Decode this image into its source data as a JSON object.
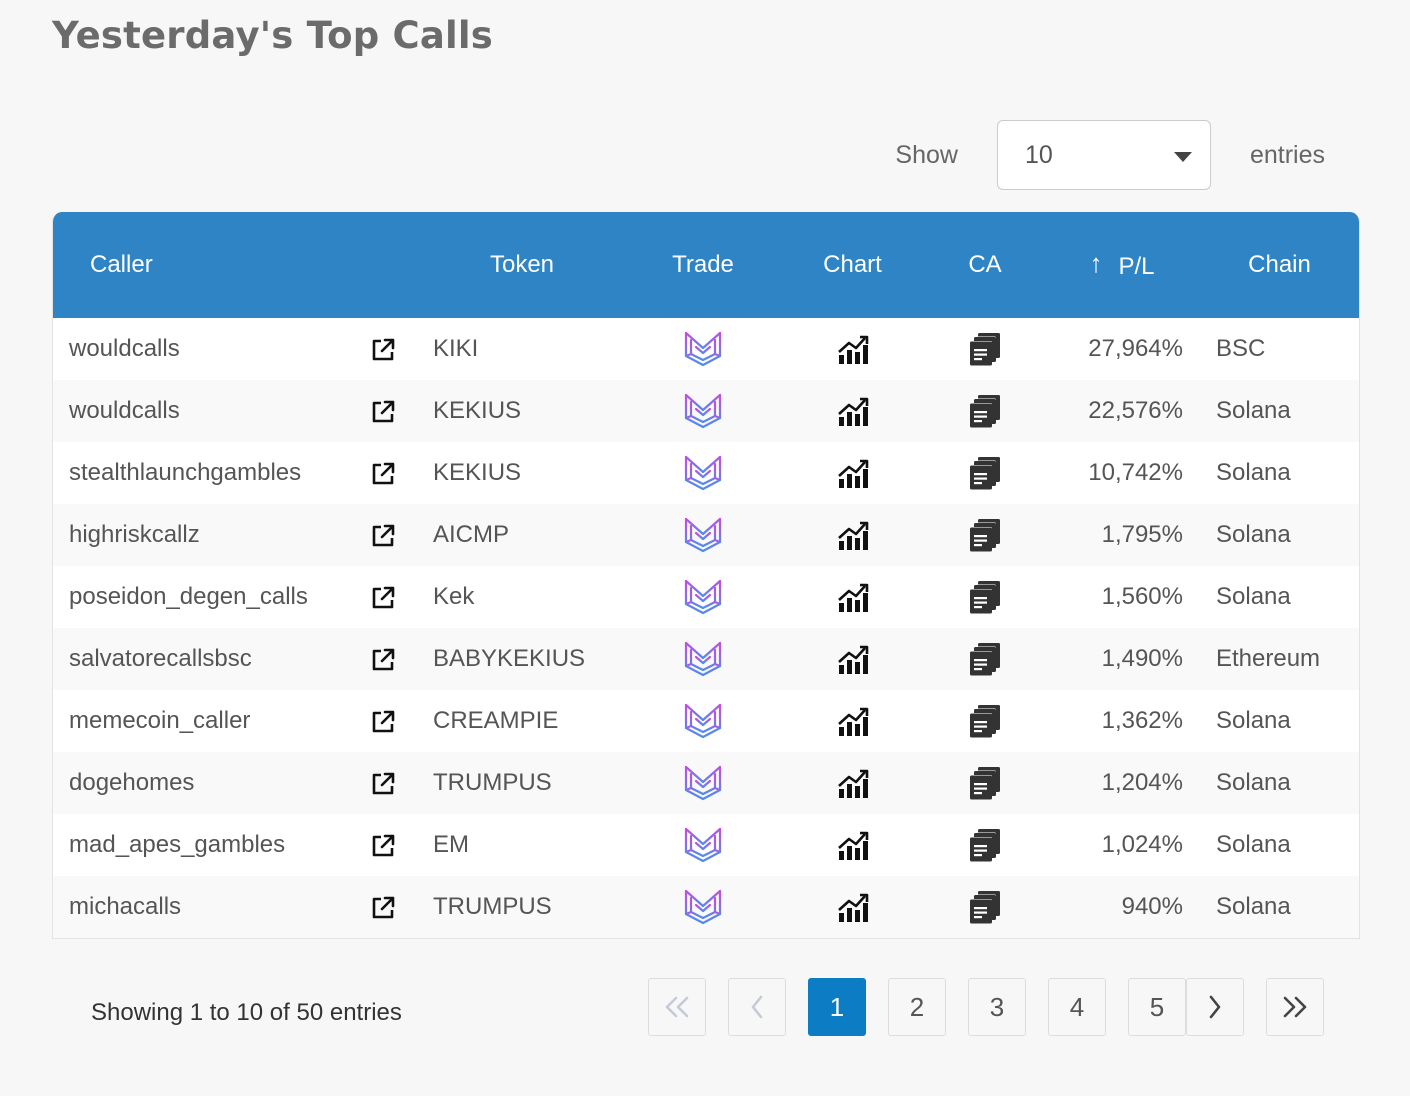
{
  "page": {
    "title": "Yesterday's Top Calls"
  },
  "length_menu": {
    "show_label": "Show",
    "selected": "10",
    "entries_label": "entries"
  },
  "table": {
    "headers": {
      "caller": "Caller",
      "token": "Token",
      "trade": "Trade",
      "chart": "Chart",
      "ca": "CA",
      "pl": "P/L",
      "chain": "Chain"
    },
    "sort_indicator": "↑",
    "rows": [
      {
        "caller": "wouldcalls",
        "token": "KIKI",
        "pl": "27,964%",
        "chain": "BSC"
      },
      {
        "caller": "wouldcalls",
        "token": "KEKIUS",
        "pl": "22,576%",
        "chain": "Solana"
      },
      {
        "caller": "stealthlaunchgambles",
        "token": "KEKIUS",
        "pl": "10,742%",
        "chain": "Solana"
      },
      {
        "caller": "highriskcallz",
        "token": "AICMP",
        "pl": "1,795%",
        "chain": "Solana"
      },
      {
        "caller": "poseidon_degen_calls",
        "token": "Kek",
        "pl": "1,560%",
        "chain": "Solana"
      },
      {
        "caller": "salvatorecallsbsc",
        "token": "BABYKEKIUS",
        "pl": "1,490%",
        "chain": "Ethereum"
      },
      {
        "caller": "memecoin_caller",
        "token": "CREAMPIE",
        "pl": "1,362%",
        "chain": "Solana"
      },
      {
        "caller": "dogehomes",
        "token": "TRUMPUS",
        "pl": "1,204%",
        "chain": "Solana"
      },
      {
        "caller": "mad_apes_gambles",
        "token": "EM",
        "pl": "1,024%",
        "chain": "Solana"
      },
      {
        "caller": "michacalls",
        "token": "TRUMPUS",
        "pl": "940%",
        "chain": "Solana"
      }
    ]
  },
  "icons": {
    "link": "external-link-icon",
    "trade": "trade-logo-icon",
    "chart": "chart-icon",
    "ca": "copy-icon"
  },
  "colors": {
    "header_bg": "#2e84c5",
    "active_page": "#0c7cc4",
    "trade_gradient_top": "#c44de0",
    "trade_gradient_bottom": "#4f8cf0"
  },
  "footer": {
    "info": "Showing 1 to 10 of 50 entries"
  },
  "pagination": {
    "pages": [
      "1",
      "2",
      "3",
      "4",
      "5"
    ],
    "current": "1"
  }
}
